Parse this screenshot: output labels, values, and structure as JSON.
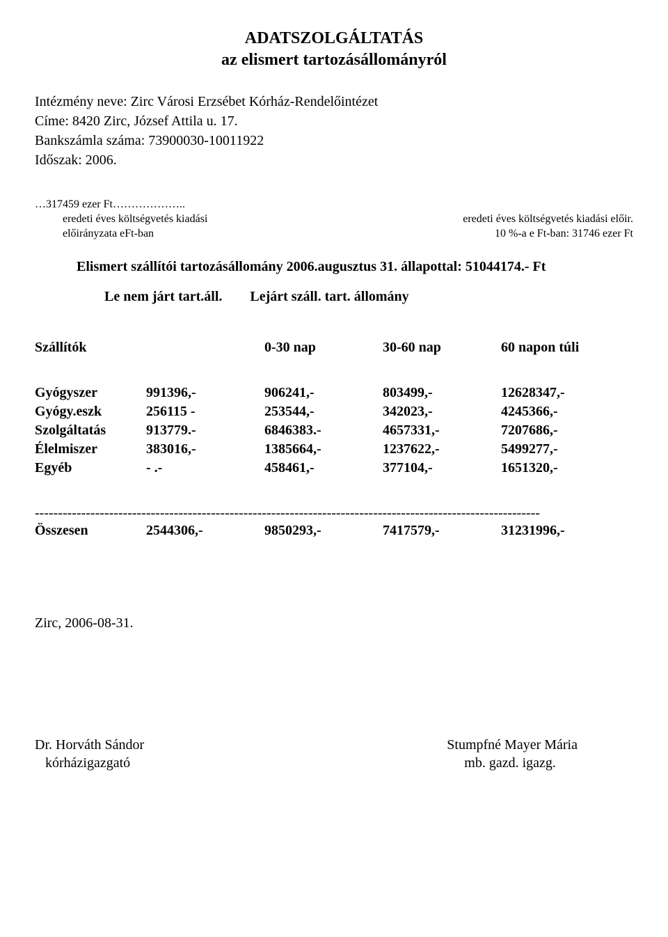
{
  "title": {
    "line1": "ADATSZOLGÁLTATÁS",
    "line2": "az elismert tartozásállományról"
  },
  "meta": {
    "line1": "Intézmény neve: Zirc Városi Erzsébet Kórház-Rendelőintézet",
    "line2": "Címe: 8420 Zirc, József Attila u. 17.",
    "line3": "Bankszámla száma: 73900030-10011922",
    "line4": "Időszak: 2006."
  },
  "budget": {
    "left1": "…317459 ezer Ft………………..",
    "left2": "eredeti éves költségvetés kiadási",
    "left3": "előirányzata eFt-ban",
    "right2": "eredeti éves költségvetés kiadási előir.",
    "right3": "10 %-a e Ft-ban: 31746 ezer Ft"
  },
  "status_line": "Elismert szállítói tartozásállomány 2006.augusztus 31. állapottal: 51044174.- Ft",
  "column_labels": {
    "left": "Le nem járt tart.áll.",
    "right": "Lejárt száll. tart. állomány"
  },
  "table": {
    "head": {
      "c1": "Szállítók",
      "c2": "",
      "c3": "0-30 nap",
      "c4": "30-60 nap",
      "c5": "60 napon túli"
    },
    "rows": [
      {
        "c1": "Gyógyszer",
        "c2": "991396,-",
        "c3": "906241,-",
        "c4": "803499,-",
        "c5": "12628347,-"
      },
      {
        "c1": "Gyógy.eszk",
        "c2": "256115 -",
        "c3": "253544,-",
        "c4": "342023,-",
        "c5": "4245366,-"
      },
      {
        "c1": "Szolgáltatás",
        "c2": "913779.-",
        "c3": "6846383.-",
        "c4": "4657331,-",
        "c5": "7207686,-"
      },
      {
        "c1": "Élelmiszer",
        "c2": "383016,-",
        "c3": "1385664,-",
        "c4": "1237622,-",
        "c5": "5499277,-"
      },
      {
        "c1": "Egyéb",
        "c2": "-      .-",
        "c3": "458461,-",
        "c4": "377104,-",
        "c5": "1651320,-"
      }
    ],
    "divider": "-------------------------------------------------------------------------------------------------------------",
    "sum": {
      "c1": "Összesen",
      "c2": "2544306,-",
      "c3": "9850293,-",
      "c4": "7417579,-",
      "c5": "31231996,-"
    }
  },
  "date": "Zirc, 2006-08-31.",
  "sign": {
    "left1": "Dr. Horváth Sándor",
    "left2": "   kórházigazgató",
    "right1": "Stumpfné Mayer Mária",
    "right2": "     mb. gazd. igazg."
  },
  "colors": {
    "text": "#000000",
    "background": "#ffffff"
  },
  "fonts": {
    "family": "Times New Roman",
    "title_size_pt": 18,
    "body_size_pt": 15,
    "budget_size_pt": 12
  }
}
